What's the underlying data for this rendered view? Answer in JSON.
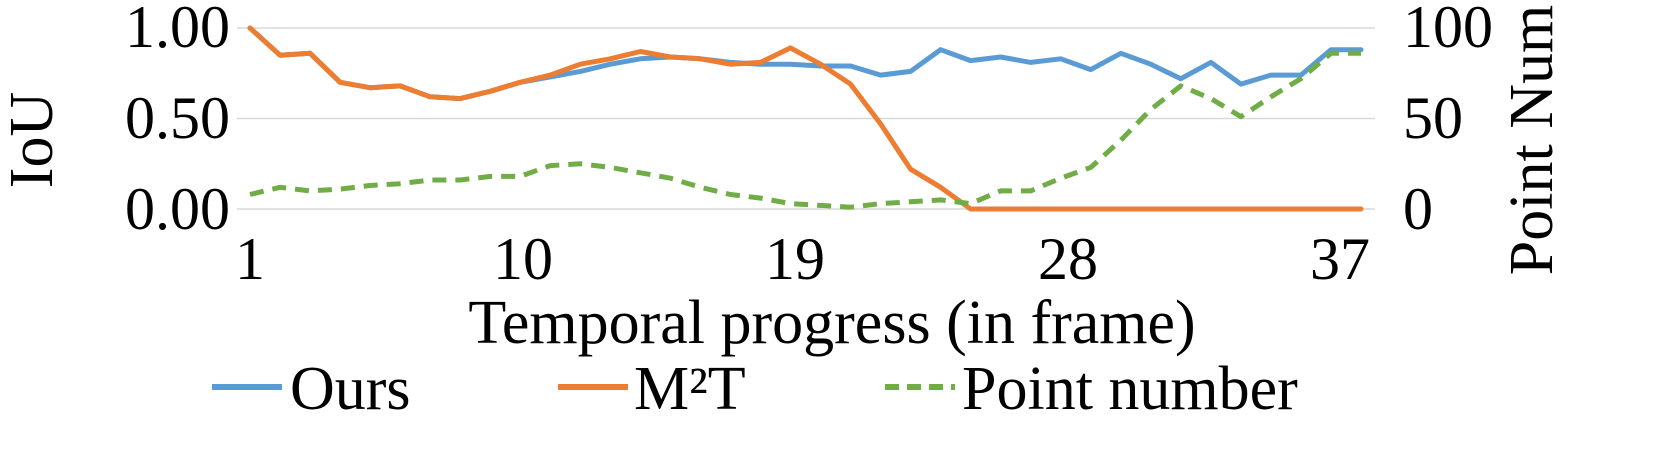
{
  "chart_data": {
    "type": "line",
    "xlabel": "Temporal progress (in frame)",
    "ylabel": "IoU",
    "y2label": "Point Num",
    "x": [
      1,
      2,
      3,
      4,
      5,
      6,
      7,
      8,
      9,
      10,
      11,
      12,
      13,
      14,
      15,
      16,
      17,
      18,
      19,
      20,
      21,
      22,
      23,
      24,
      25,
      26,
      27,
      28,
      29,
      30,
      31,
      32,
      33,
      34,
      35,
      36,
      37,
      38
    ],
    "xticks": [
      "1",
      "10",
      "19",
      "28",
      "37"
    ],
    "xtick_values": [
      1,
      10,
      19,
      28,
      37
    ],
    "xlim": [
      1,
      38
    ],
    "ylim": [
      0,
      1
    ],
    "yticks": [
      "0.00",
      "0.50",
      "1.00"
    ],
    "ytick_values": [
      0,
      0.5,
      1
    ],
    "y2lim": [
      0,
      100
    ],
    "y2ticks": [
      "0",
      "50",
      "100"
    ],
    "y2tick_values": [
      0,
      50,
      100
    ],
    "grid": true,
    "legend_position": "bottom",
    "series": [
      {
        "name": "Ours",
        "axis": "left",
        "color": "#5b9bd5",
        "dash": "solid",
        "values": [
          1.0,
          0.85,
          0.86,
          0.7,
          0.67,
          0.68,
          0.62,
          0.61,
          0.65,
          0.7,
          0.73,
          0.76,
          0.8,
          0.83,
          0.84,
          0.83,
          0.81,
          0.8,
          0.8,
          0.79,
          0.79,
          0.74,
          0.76,
          0.88,
          0.82,
          0.84,
          0.81,
          0.83,
          0.77,
          0.86,
          0.8,
          0.72,
          0.81,
          0.69,
          0.74,
          0.74,
          0.88,
          0.88
        ]
      },
      {
        "name": "M²T",
        "axis": "left",
        "color": "#ed7d31",
        "dash": "solid",
        "values": [
          1.0,
          0.85,
          0.86,
          0.7,
          0.67,
          0.68,
          0.62,
          0.61,
          0.65,
          0.7,
          0.74,
          0.8,
          0.83,
          0.87,
          0.84,
          0.83,
          0.8,
          0.81,
          0.89,
          0.8,
          0.69,
          0.47,
          0.22,
          0.12,
          0.0,
          0.0,
          0.0,
          0.0,
          0.0,
          0.0,
          0.0,
          0.0,
          0.0,
          0.0,
          0.0,
          0.0,
          0.0,
          0.0
        ]
      },
      {
        "name": "Point number",
        "axis": "right",
        "color": "#70ad47",
        "dash": "dashed",
        "values": [
          8,
          12,
          10,
          11,
          13,
          14,
          16,
          16,
          18,
          18,
          24,
          25,
          23,
          20,
          17,
          12,
          8,
          6,
          3,
          2,
          1,
          3,
          4,
          5,
          3,
          10,
          10,
          17,
          23,
          38,
          55,
          68,
          61,
          51,
          62,
          72,
          86,
          86
        ]
      }
    ]
  }
}
